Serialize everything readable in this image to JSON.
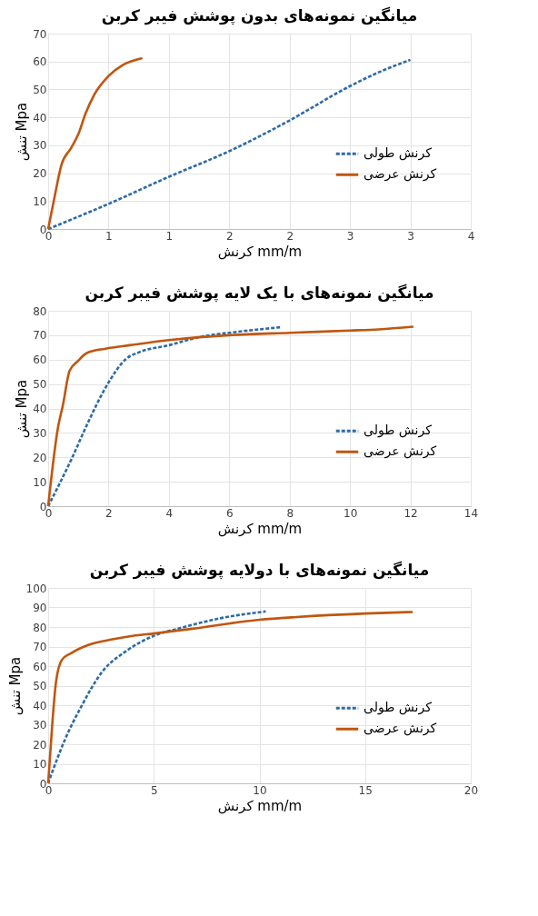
{
  "chart_data": [
    {
      "type": "line",
      "title": "میانگین نمونه‌های بدون پوشش فیبر کربن",
      "xlabel": "کرنش mm/m",
      "ylabel": "تنش Mpa",
      "xlim": [
        0,
        3.5
      ],
      "xticks": [
        0,
        {
          "value": 0.5,
          "label": "1"
        },
        1,
        {
          "value": 1.5,
          "label": "2"
        },
        2,
        {
          "value": 2.5,
          "label": "3"
        },
        3,
        {
          "value": 3.5,
          "label": "4"
        }
      ],
      "ylim": [
        0,
        70
      ],
      "yticks": [
        0,
        10,
        20,
        30,
        40,
        50,
        60,
        70
      ],
      "grid": true,
      "legend": "right",
      "series": [
        {
          "name": "کرنش طولی",
          "color": "#2e6aa8",
          "line_style": "dashed",
          "x": [
            0,
            0.5,
            1,
            1.5,
            2,
            2.5,
            2.73,
            3.0
          ],
          "values": [
            0,
            9,
            18.7,
            27.9,
            38.9,
            51.2,
            56,
            60.6
          ]
        },
        {
          "name": "کرنش عرضی",
          "color": "#c0560f",
          "line_style": "solid",
          "x": [
            0,
            0.05,
            0.11,
            0.19,
            0.25,
            0.31,
            0.38,
            0.5,
            0.62,
            0.78
          ],
          "values": [
            0,
            10.8,
            23,
            29,
            34,
            41.4,
            48,
            54.8,
            58.8,
            61.2
          ]
        }
      ]
    },
    {
      "type": "line",
      "title": "میانگین نمونه‌های با یک لایه پوشش فیبر کربن",
      "xlabel": "کرنش mm/m",
      "ylabel": "تنش Mpa",
      "xlim": [
        0,
        14
      ],
      "xticks": [
        0,
        2,
        4,
        6,
        8,
        10,
        12,
        14
      ],
      "ylim": [
        0,
        80
      ],
      "yticks": [
        0,
        10,
        20,
        30,
        40,
        50,
        60,
        70,
        80
      ],
      "grid": true,
      "legend": "right",
      "series": [
        {
          "name": "کرنش طولی",
          "color": "#2e6aa8",
          "line_style": "dashed",
          "x": [
            0,
            0.77,
            1.33,
            1.9,
            2.58,
            3.03,
            4,
            5.07,
            6,
            7,
            7.73
          ],
          "values": [
            0,
            19.2,
            34.5,
            48.5,
            60.3,
            63.1,
            65.9,
            69.4,
            71,
            72.4,
            73.3
          ]
        },
        {
          "name": "کرنش عرضی",
          "color": "#c0560f",
          "line_style": "solid",
          "x": [
            0,
            0.32,
            0.49,
            0.71,
            1,
            1.28,
            1.9,
            2.7,
            4,
            6,
            8,
            10,
            10.95,
            12.1
          ],
          "values": [
            0,
            31.8,
            41.5,
            55.4,
            59.6,
            62.7,
            64.5,
            65.9,
            68,
            70,
            71,
            71.9,
            72.4,
            73.5
          ]
        }
      ]
    },
    {
      "type": "line",
      "title": "میانگین نمونه‌های با دولایه پوشش فیبر کربن",
      "xlabel": "کرنش mm/m",
      "ylabel": "تنش Mpa",
      "xlim": [
        0,
        20
      ],
      "xticks": [
        0,
        5,
        10,
        15,
        20
      ],
      "ylim": [
        0,
        100
      ],
      "yticks": [
        0,
        10,
        20,
        30,
        40,
        50,
        60,
        70,
        80,
        90,
        100
      ],
      "grid": true,
      "legend": "right",
      "series": [
        {
          "name": "کرنش طولی",
          "color": "#2e6aa8",
          "line_style": "dashed",
          "x": [
            0,
            0.21,
            0.78,
            1.58,
            2.55,
            3.68,
            5,
            6.27,
            8.2,
            10.3
          ],
          "values": [
            0,
            6.3,
            22,
            39.6,
            57,
            67.6,
            75.5,
            79.5,
            84.6,
            88
          ]
        },
        {
          "name": "کرنش عرضی",
          "color": "#c0560f",
          "line_style": "solid",
          "x": [
            0,
            0.21,
            0.37,
            0.65,
            1.1,
            1.9,
            3.04,
            4,
            5,
            6.75,
            10,
            11.76,
            15,
            17.25
          ],
          "values": [
            0,
            32.6,
            51.8,
            63.2,
            66.7,
            70.8,
            73.7,
            75.5,
            76.7,
            79,
            83.7,
            85.1,
            86.9,
            87.7
          ]
        }
      ]
    }
  ]
}
